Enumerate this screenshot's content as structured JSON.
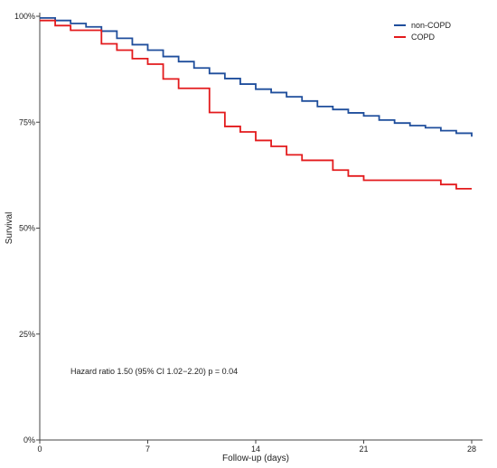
{
  "chart_data": {
    "type": "line",
    "title": "",
    "xlabel": "Follow-up (days)",
    "ylabel": "Survival",
    "xlim": [
      0,
      28
    ],
    "ylim": [
      0,
      1
    ],
    "x_ticks": [
      0,
      7,
      14,
      21,
      28
    ],
    "x_tick_labels": [
      "0",
      "7",
      "14",
      "21",
      "28"
    ],
    "y_ticks": [
      0,
      0.25,
      0.5,
      0.75,
      1.0
    ],
    "y_tick_labels": [
      "0%",
      "25%",
      "50%",
      "75%",
      "100%"
    ],
    "grid": false,
    "legend_position": "top-right",
    "annotation": "Hazard ratio 1.50 (95% CI 1.02−2.20) p = 0.04",
    "series": [
      {
        "name": "non-COPD",
        "color": "#1f4e9c",
        "step": true,
        "x": [
          0,
          1,
          2,
          3,
          4,
          5,
          6,
          7,
          8,
          9,
          10,
          11,
          12,
          13,
          14,
          15,
          16,
          17,
          18,
          19,
          20,
          21,
          22,
          23,
          24,
          25,
          26,
          27,
          28
        ],
        "y": [
          0.996,
          0.99,
          0.983,
          0.975,
          0.965,
          0.948,
          0.933,
          0.92,
          0.905,
          0.893,
          0.878,
          0.865,
          0.853,
          0.84,
          0.828,
          0.82,
          0.81,
          0.8,
          0.787,
          0.78,
          0.772,
          0.765,
          0.755,
          0.748,
          0.742,
          0.737,
          0.73,
          0.724,
          0.716
        ]
      },
      {
        "name": "COPD",
        "color": "#e31a1c",
        "step": true,
        "x": [
          0,
          1,
          2,
          4,
          5,
          6,
          7,
          8,
          9,
          11,
          12,
          13,
          14,
          15,
          16,
          17,
          19,
          20,
          21,
          26,
          27,
          28
        ],
        "y": [
          0.99,
          0.978,
          0.967,
          0.935,
          0.92,
          0.9,
          0.887,
          0.852,
          0.83,
          0.773,
          0.74,
          0.727,
          0.707,
          0.693,
          0.673,
          0.66,
          0.637,
          0.623,
          0.613,
          0.603,
          0.593,
          0.593
        ]
      }
    ]
  }
}
